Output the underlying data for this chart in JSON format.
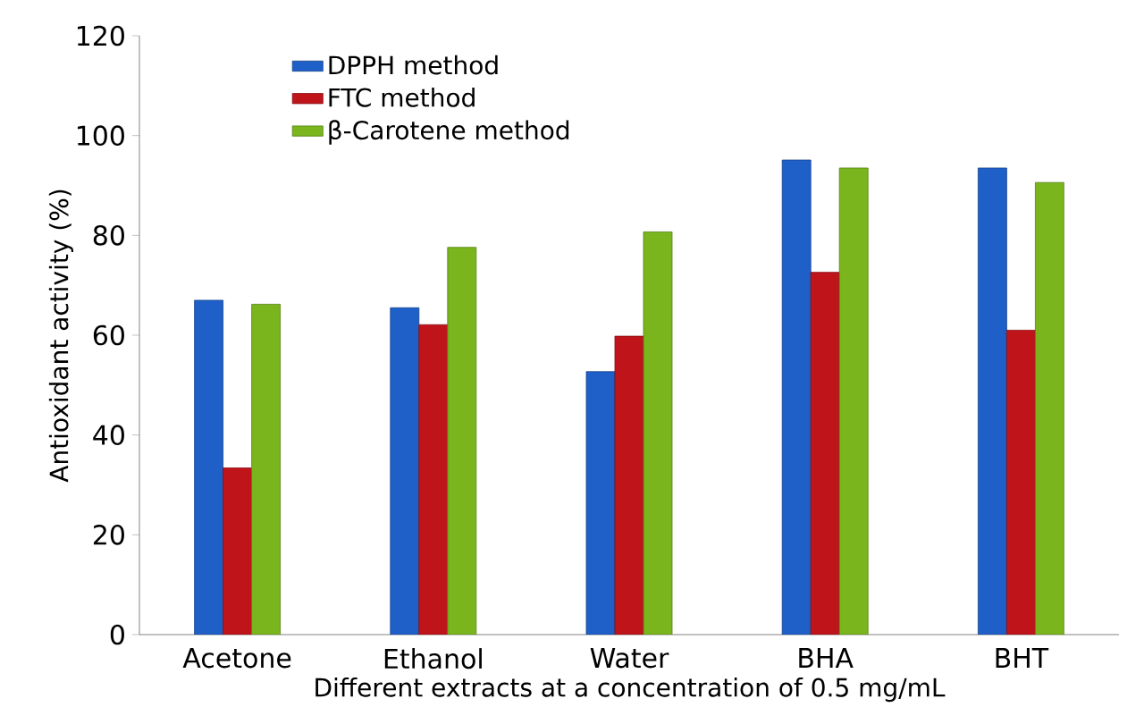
{
  "chart_data": {
    "type": "bar",
    "xlabel": "Different extracts at a concentration of 0.5 mg/mL",
    "ylabel": "Antioxidant activity (%)",
    "categories": [
      "Acetone",
      "Ethanol",
      "Water",
      "BHA",
      "BHT"
    ],
    "series": [
      {
        "name": "DPPH method",
        "color": "#1f5fc8",
        "values": [
          67,
          65.5,
          52.7,
          95.1,
          93.5
        ]
      },
      {
        "name": "FTC method",
        "color": "#c0141b",
        "values": [
          33.4,
          62.1,
          59.8,
          72.6,
          61
        ]
      },
      {
        "name": "β-Carotene method",
        "color": "#7ab51d",
        "values": [
          66.2,
          77.6,
          80.7,
          93.5,
          90.6
        ]
      }
    ],
    "ylim": [
      0,
      120
    ],
    "yticks": [
      0,
      20,
      40,
      60,
      80,
      100,
      120
    ],
    "legend": "top left",
    "grid": false
  }
}
